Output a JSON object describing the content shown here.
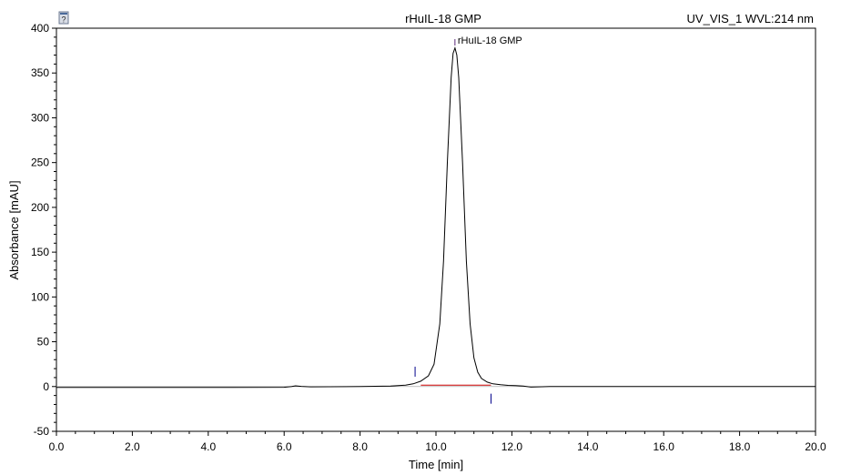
{
  "chart_data": {
    "type": "line",
    "title": "rHuIL-18 GMP",
    "channel": "UV_VIS_1 WVL:214 nm",
    "xlabel": "Time [min]",
    "ylabel": "Absorbance [mAU]",
    "xlim": [
      0.0,
      20.0
    ],
    "ylim": [
      -50,
      400
    ],
    "x_ticks": [
      0.0,
      2.0,
      4.0,
      6.0,
      8.0,
      10.0,
      12.0,
      14.0,
      16.0,
      18.0,
      20.0
    ],
    "x_tick_labels": [
      "0.0",
      "2.0",
      "4.0",
      "6.0",
      "8.0",
      "10.0",
      "12.0",
      "14.0",
      "16.0",
      "18.0",
      "20.0"
    ],
    "y_ticks": [
      -50,
      0,
      50,
      100,
      150,
      200,
      250,
      300,
      350,
      400
    ],
    "y_tick_labels": [
      "-50",
      "0",
      "50",
      "100",
      "150",
      "200",
      "250",
      "300",
      "350",
      "400"
    ],
    "grid": false,
    "series": [
      {
        "color": "#000000",
        "x": [
          0.0,
          2.0,
          4.0,
          6.0,
          6.2,
          6.3,
          6.45,
          6.7,
          8.0,
          8.8,
          9.2,
          9.4,
          9.6,
          9.8,
          9.95,
          10.1,
          10.2,
          10.3,
          10.4,
          10.45,
          10.5,
          10.55,
          10.6,
          10.7,
          10.8,
          10.9,
          11.0,
          11.1,
          11.2,
          11.35,
          11.5,
          11.7,
          11.9,
          12.1,
          12.3,
          12.5,
          13.0,
          16.0,
          20.0
        ],
        "y": [
          -1,
          -1,
          -1,
          -0.8,
          0,
          0.8,
          0.2,
          -0.3,
          0,
          0.5,
          1.5,
          3,
          6,
          12,
          25,
          70,
          140,
          250,
          345,
          372,
          378,
          370,
          345,
          250,
          140,
          70,
          32,
          16,
          9,
          5,
          3,
          2,
          1.3,
          1,
          0.5,
          -0.6,
          0,
          0,
          0
        ]
      }
    ],
    "baseline": {
      "color": "#cc0000",
      "x": [
        9.6,
        11.45
      ],
      "y": [
        1.5,
        1.5
      ]
    },
    "peak_markers": [
      {
        "time": 9.45,
        "y": 11,
        "color": "#00008b"
      },
      {
        "time": 11.45,
        "y": -8,
        "color": "#00008b"
      }
    ],
    "peak_label": {
      "text": "rHuIL-18 GMP",
      "time": 10.5,
      "color": "#5a2a7a"
    }
  }
}
